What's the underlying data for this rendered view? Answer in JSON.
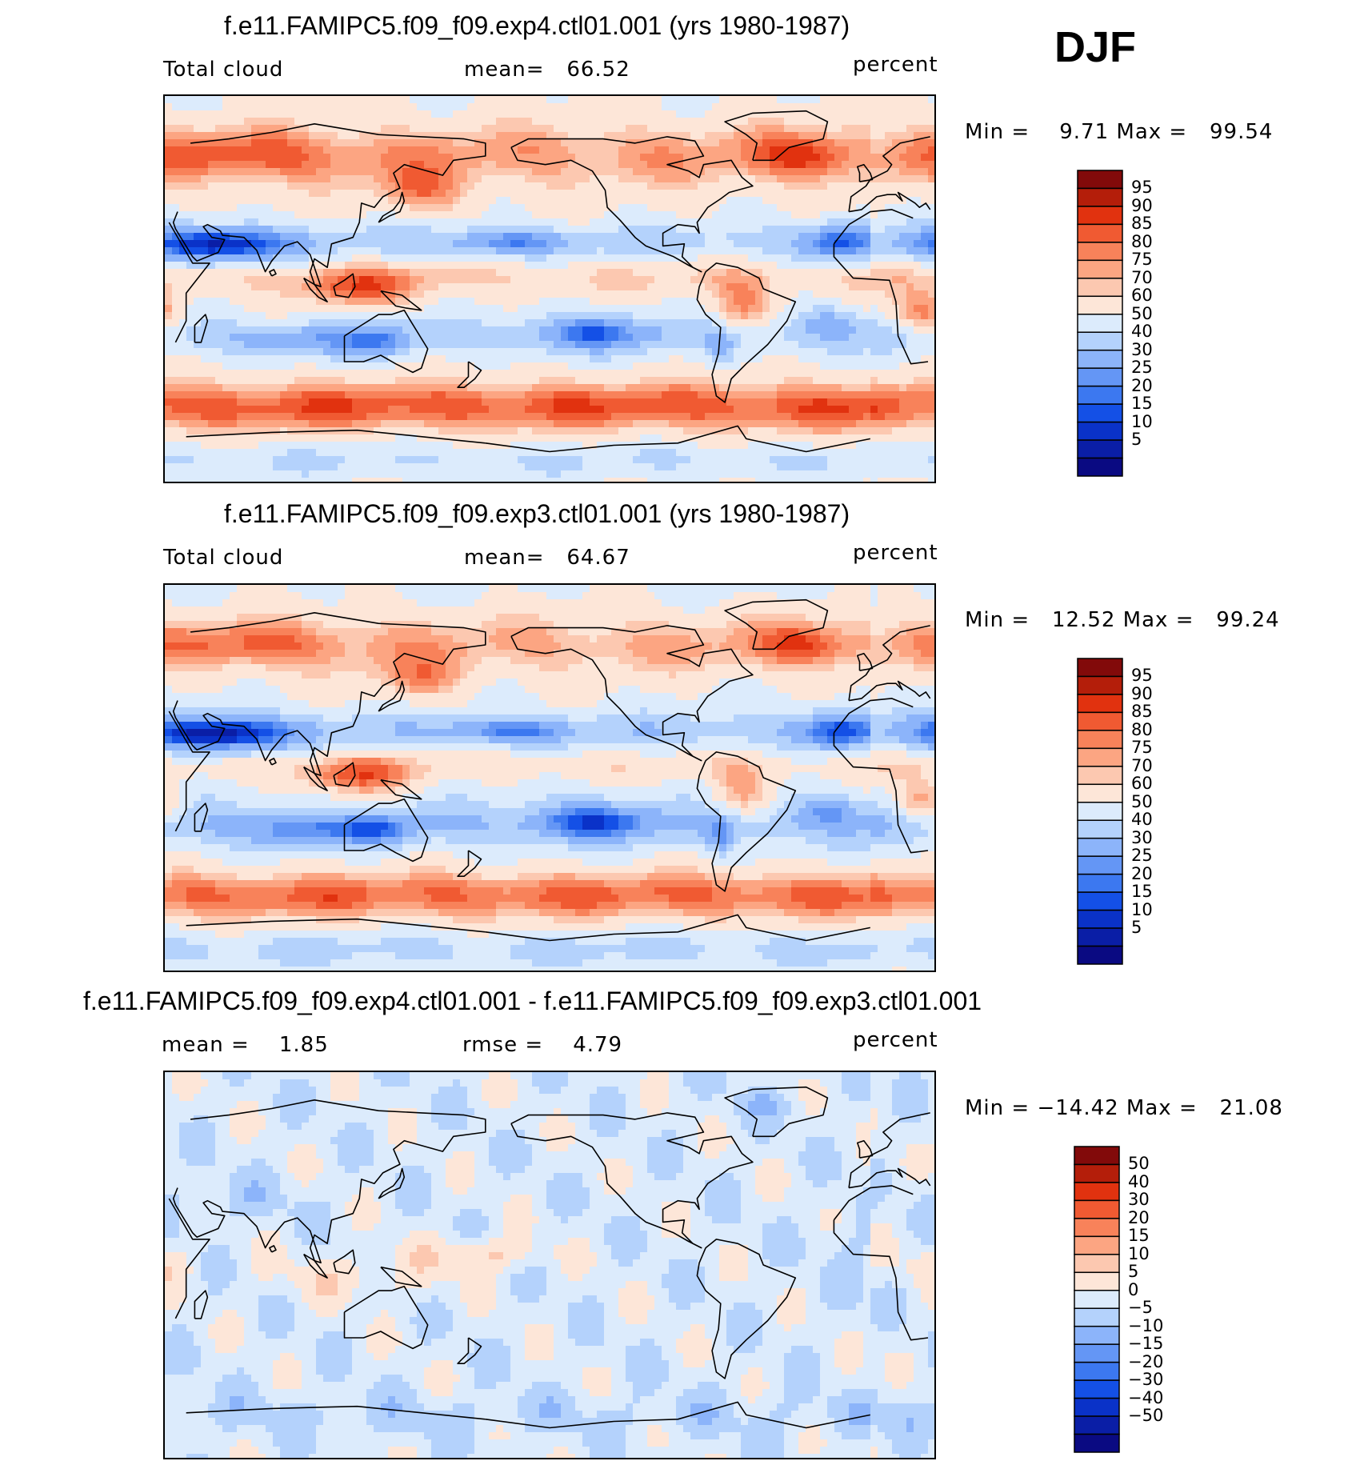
{
  "season": "DJF",
  "panels": [
    {
      "title": "f.e11.FAMIPC5.f09_f09.exp4.ctl01.001 (yrs 1980-1987)",
      "left_label": "Total cloud",
      "center_label": "mean=   66.52",
      "units": "percent",
      "minmax": "Min =    9.71 Max =   99.54",
      "colorbar_labels": [
        "95",
        "90",
        "85",
        "80",
        "75",
        "70",
        "60",
        "50",
        "40",
        "30",
        "25",
        "20",
        "15",
        "10",
        "5"
      ]
    },
    {
      "title": "f.e11.FAMIPC5.f09_f09.exp3.ctl01.001 (yrs 1980-1987)",
      "left_label": "Total cloud",
      "center_label": "mean=   64.67",
      "units": "percent",
      "minmax": "Min =   12.52 Max =   99.24",
      "colorbar_labels": [
        "95",
        "90",
        "85",
        "80",
        "75",
        "70",
        "60",
        "50",
        "40",
        "30",
        "25",
        "20",
        "15",
        "10",
        "5"
      ]
    },
    {
      "title": "f.e11.FAMIPC5.f09_f09.exp4.ctl01.001 - f.e11.FAMIPC5.f09_f09.exp3.ctl01.001",
      "left_label": "mean =    1.85",
      "center_label": "rmse =    4.79",
      "units": "percent",
      "minmax": "Min = −14.42 Max =   21.08",
      "colorbar_labels": [
        "50",
        "40",
        "30",
        "20",
        "15",
        "10",
        "5",
        "0",
        "−5",
        "−10",
        "−15",
        "−20",
        "−30",
        "−40",
        "−50"
      ]
    }
  ],
  "chart_data": [
    {
      "type": "heatmap",
      "title": "f.e11.FAMIPC5.f09_f09.exp4.ctl01.001 (yrs 1980-1987)",
      "variable": "Total cloud",
      "units": "percent",
      "mean": 66.52,
      "min": 9.71,
      "max": 99.54,
      "contour_levels": [
        5,
        10,
        15,
        20,
        25,
        30,
        40,
        50,
        60,
        70,
        75,
        80,
        85,
        90,
        95
      ],
      "colorbar_colors": [
        "#0a0a82",
        "#0a1ea6",
        "#0a32c8",
        "#1450e6",
        "#3c78f0",
        "#6496f5",
        "#8cb4fa",
        "#b4d2fc",
        "#dcebfc",
        "#fde6d8",
        "#fcc8b0",
        "#fca582",
        "#f8825a",
        "#f05a32",
        "#e1320f",
        "#b41e0a",
        "#820a0a"
      ]
    },
    {
      "type": "heatmap",
      "title": "f.e11.FAMIPC5.f09_f09.exp3.ctl01.001 (yrs 1980-1987)",
      "variable": "Total cloud",
      "units": "percent",
      "mean": 64.67,
      "min": 12.52,
      "max": 99.24,
      "contour_levels": [
        5,
        10,
        15,
        20,
        25,
        30,
        40,
        50,
        60,
        70,
        75,
        80,
        85,
        90,
        95
      ],
      "colorbar_colors": [
        "#0a0a82",
        "#0a1ea6",
        "#0a32c8",
        "#1450e6",
        "#3c78f0",
        "#6496f5",
        "#8cb4fa",
        "#b4d2fc",
        "#dcebfc",
        "#fde6d8",
        "#fcc8b0",
        "#fca582",
        "#f8825a",
        "#f05a32",
        "#e1320f",
        "#b41e0a",
        "#820a0a"
      ]
    },
    {
      "type": "heatmap",
      "title": "f.e11.FAMIPC5.f09_f09.exp4.ctl01.001 - f.e11.FAMIPC5.f09_f09.exp3.ctl01.001",
      "units": "percent",
      "mean": 1.85,
      "rmse": 4.79,
      "min": -14.42,
      "max": 21.08,
      "contour_levels": [
        -50,
        -40,
        -30,
        -20,
        -15,
        -10,
        -5,
        0,
        5,
        10,
        15,
        20,
        30,
        40,
        50
      ],
      "colorbar_colors": [
        "#0a0a82",
        "#0a1ea6",
        "#0a32c8",
        "#1450e6",
        "#3c78f0",
        "#6496f5",
        "#8cb4fa",
        "#b4d2fc",
        "#dcebfc",
        "#fde6d8",
        "#fcc8b0",
        "#fca582",
        "#f8825a",
        "#f05a32",
        "#e1320f",
        "#b41e0a",
        "#820a0a"
      ]
    }
  ]
}
